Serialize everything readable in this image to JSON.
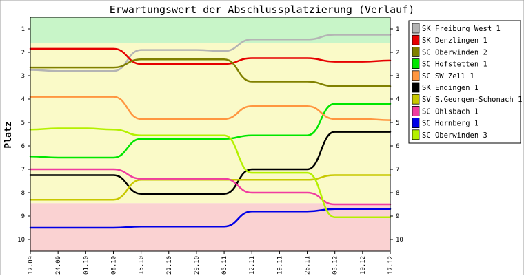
{
  "chart_data": {
    "type": "line",
    "title": "Erwartungswert der Abschlussplatzierung (Verlauf)",
    "ylabel": "Platz",
    "xlabel": "",
    "ylim": [
      0.5,
      10.5
    ],
    "y_inverted": true,
    "y_ticks": [
      "1",
      "2",
      "3",
      "4",
      "5",
      "6",
      "7",
      "8",
      "9",
      "10"
    ],
    "x": [
      "17.09",
      "24.09",
      "01.10",
      "08.10",
      "15.10",
      "22.10",
      "29.10",
      "05.11",
      "12.11",
      "19.11",
      "26.11",
      "03.12",
      "10.12",
      "17.12"
    ],
    "legend_position": "right",
    "grid": false,
    "bands": [
      {
        "from": 0.5,
        "to": 1.6,
        "color": "#c8f5c8"
      },
      {
        "from": 1.6,
        "to": 8.45,
        "color": "#fafac8"
      },
      {
        "from": 8.45,
        "to": 10.5,
        "color": "#fad2d2"
      }
    ],
    "series": [
      {
        "name": "SK Freiburg West 1",
        "color": "#b4b4b4",
        "values": [
          2.75,
          2.8,
          2.8,
          2.8,
          1.9,
          1.9,
          1.9,
          1.95,
          1.45,
          1.45,
          1.45,
          1.25,
          1.25,
          1.25
        ]
      },
      {
        "name": "SK Denzlingen 1",
        "color": "#e60000",
        "values": [
          1.85,
          1.85,
          1.85,
          1.85,
          2.5,
          2.5,
          2.5,
          2.5,
          2.25,
          2.25,
          2.25,
          2.4,
          2.4,
          2.35
        ]
      },
      {
        "name": "SC Oberwinden 2",
        "color": "#808000",
        "values": [
          2.65,
          2.65,
          2.65,
          2.65,
          2.3,
          2.3,
          2.3,
          2.3,
          3.25,
          3.25,
          3.25,
          3.45,
          3.45,
          3.45
        ]
      },
      {
        "name": "SC Hofstetten 1",
        "color": "#00e600",
        "values": [
          6.45,
          6.5,
          6.5,
          6.5,
          5.7,
          5.7,
          5.7,
          5.7,
          5.55,
          5.55,
          5.55,
          4.2,
          4.2,
          4.2
        ]
      },
      {
        "name": "SC SW Zell 1",
        "color": "#ff9640",
        "values": [
          3.9,
          3.9,
          3.9,
          3.9,
          4.85,
          4.85,
          4.85,
          4.85,
          4.3,
          4.3,
          4.3,
          4.85,
          4.85,
          4.9
        ]
      },
      {
        "name": "SK Endingen 1",
        "color": "#000000",
        "values": [
          7.25,
          7.25,
          7.25,
          7.25,
          8.05,
          8.05,
          8.05,
          8.05,
          7.0,
          7.0,
          7.0,
          5.4,
          5.4,
          5.4
        ]
      },
      {
        "name": "SV S.Georgen-Schonach 1",
        "color": "#c8c800",
        "values": [
          8.3,
          8.3,
          8.3,
          8.3,
          7.45,
          7.45,
          7.45,
          7.45,
          7.45,
          7.45,
          7.45,
          7.25,
          7.25,
          7.25
        ]
      },
      {
        "name": "SC Ohlsbach 1",
        "color": "#f03ca0",
        "values": [
          7.0,
          7.0,
          7.0,
          7.0,
          7.4,
          7.4,
          7.4,
          7.4,
          8.0,
          8.0,
          8.0,
          8.5,
          8.5,
          8.5
        ]
      },
      {
        "name": "SC Hornberg 1",
        "color": "#0000e6",
        "values": [
          9.5,
          9.5,
          9.5,
          9.5,
          9.45,
          9.45,
          9.45,
          9.45,
          8.8,
          8.8,
          8.8,
          8.7,
          8.7,
          8.7
        ]
      },
      {
        "name": "SC Oberwinden 3",
        "color": "#b4f000",
        "values": [
          5.3,
          5.25,
          5.25,
          5.3,
          5.55,
          5.55,
          5.55,
          5.55,
          7.15,
          7.15,
          7.15,
          9.05,
          9.05,
          9.05
        ]
      }
    ]
  }
}
